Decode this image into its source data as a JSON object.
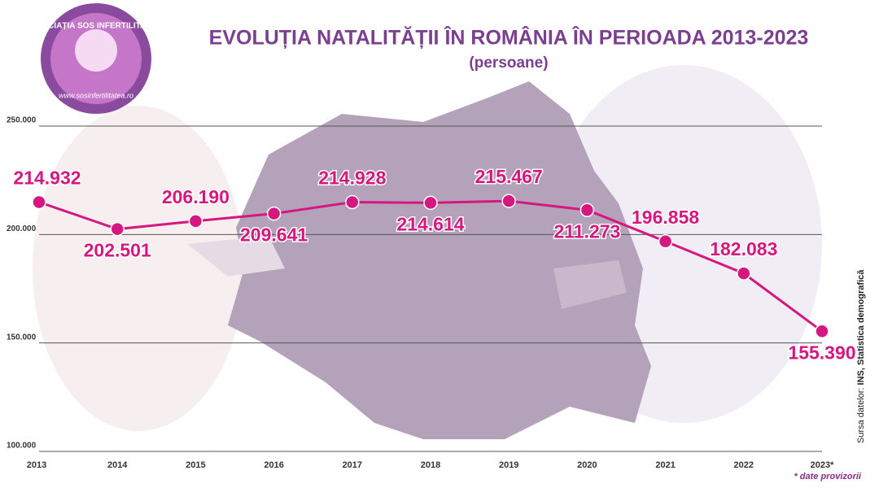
{
  "chart_data": {
    "type": "line",
    "title": "EVOLUȚIA NATALITĂȚII ÎN ROMÂNIA ÎN PERIOADA 2013-2023",
    "subtitle": "(persoane)",
    "logo_text": "ASOCIAȚIA SOS INFERTILITATEA",
    "logo_url": "www.sosinfertilitatea.ro",
    "source_label": "Sursa datelor:",
    "source": "INS, Statistica demografică",
    "footnote": "* date provizorii",
    "categories": [
      "2013",
      "2014",
      "2015",
      "2016",
      "2017",
      "2018",
      "2019",
      "2020",
      "2021",
      "2022",
      "2023*"
    ],
    "values": [
      214932,
      202501,
      206190,
      209641,
      214928,
      214614,
      215467,
      211273,
      196858,
      182083,
      155390
    ],
    "value_labels": [
      "214.932",
      "202.501",
      "206.190",
      "209.641",
      "214.928",
      "214.614",
      "215.467",
      "211.273",
      "196.858",
      "182.083",
      "155.390"
    ],
    "color": "#d6177f",
    "ylim": [
      100000,
      250000
    ],
    "yticks": [
      {
        "value": 100000,
        "label": "100.000"
      },
      {
        "value": 150000,
        "label": "150.000"
      },
      {
        "value": 200000,
        "label": "200.000"
      },
      {
        "value": 250000,
        "label": "250.000"
      }
    ],
    "grid": true
  }
}
